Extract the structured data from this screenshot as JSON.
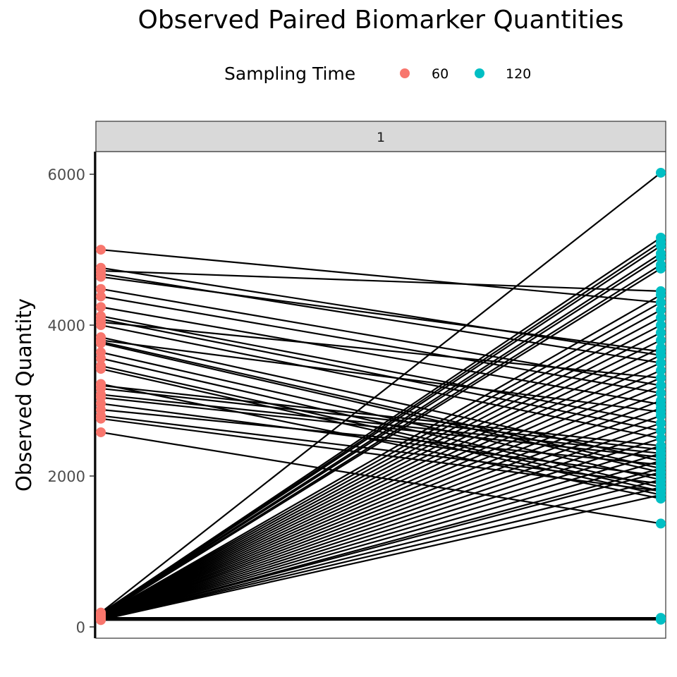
{
  "chart_data": {
    "type": "line",
    "title": "Observed Paired Biomarker Quantities",
    "xlabel": "",
    "ylabel": "Observed Quantity",
    "ylim": [
      -150,
      6300
    ],
    "yticks": [
      0,
      2000,
      4000,
      6000
    ],
    "ytick_labels": [
      "0",
      "2000",
      "4000",
      "6000"
    ],
    "facet_label": "1",
    "legend": {
      "title": "Sampling Time",
      "placement": "top",
      "entries": [
        {
          "label": "60",
          "color": "#F8766D"
        },
        {
          "label": "120",
          "color": "#00BFC4"
        }
      ]
    },
    "x_categories": [
      "60",
      "120"
    ],
    "grid": false,
    "pairs": [
      [
        5000,
        4300
      ],
      [
        4760,
        3600
      ],
      [
        4720,
        4450
      ],
      [
        4680,
        3500
      ],
      [
        4640,
        3650
      ],
      [
        4480,
        3200
      ],
      [
        4380,
        3100
      ],
      [
        4240,
        2950
      ],
      [
        4120,
        2700
      ],
      [
        4080,
        2600
      ],
      [
        4040,
        3300
      ],
      [
        4000,
        2500
      ],
      [
        3840,
        2200
      ],
      [
        3800,
        2850
      ],
      [
        3780,
        2100
      ],
      [
        3760,
        2050
      ],
      [
        3640,
        1950
      ],
      [
        3560,
        1850
      ],
      [
        3460,
        1800
      ],
      [
        3420,
        1750
      ],
      [
        3220,
        1700
      ],
      [
        3200,
        2400
      ],
      [
        3160,
        2350
      ],
      [
        3080,
        2300
      ],
      [
        3040,
        2250
      ],
      [
        2960,
        2000
      ],
      [
        2880,
        2150
      ],
      [
        2800,
        1900
      ],
      [
        2760,
        1800
      ],
      [
        2580,
        1370
      ],
      [
        190,
        6020
      ],
      [
        180,
        5160
      ],
      [
        175,
        5100
      ],
      [
        170,
        5050
      ],
      [
        165,
        4950
      ],
      [
        160,
        4900
      ],
      [
        155,
        4800
      ],
      [
        150,
        4750
      ],
      [
        148,
        4400
      ],
      [
        145,
        4300
      ],
      [
        143,
        4200
      ],
      [
        140,
        4100
      ],
      [
        138,
        4000
      ],
      [
        136,
        3900
      ],
      [
        134,
        3800
      ],
      [
        132,
        3700
      ],
      [
        130,
        3600
      ],
      [
        128,
        3500
      ],
      [
        126,
        3400
      ],
      [
        124,
        3300
      ],
      [
        122,
        3200
      ],
      [
        120,
        3100
      ],
      [
        118,
        3000
      ],
      [
        116,
        2900
      ],
      [
        114,
        2800
      ],
      [
        112,
        2700
      ],
      [
        110,
        2600
      ],
      [
        108,
        2500
      ],
      [
        106,
        2400
      ],
      [
        104,
        2300
      ],
      [
        102,
        2200
      ],
      [
        100,
        2100
      ],
      [
        98,
        2050
      ],
      [
        96,
        1950
      ],
      [
        95,
        1850
      ],
      [
        94,
        1750
      ],
      [
        120,
        120
      ],
      [
        110,
        110
      ],
      [
        100,
        100
      ],
      [
        90,
        95
      ]
    ]
  }
}
